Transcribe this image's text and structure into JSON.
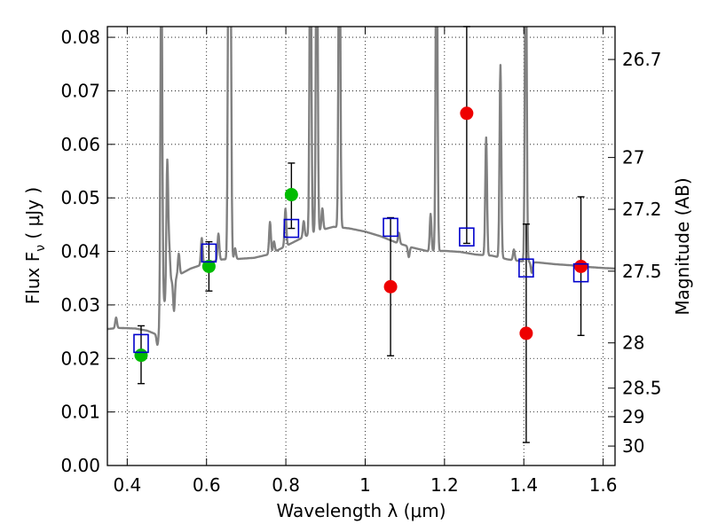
{
  "chart_data": {
    "type": "scatter",
    "xlabel": "Wavelength  λ (μm)",
    "ylabel": "Flux  F",
    "ylabel_sub": "ν",
    "ylabel_unit": " ( μJy )",
    "y2label": "Magnitude (AB)",
    "xlim": [
      0.35,
      1.63
    ],
    "ylim": [
      0.0,
      0.082
    ],
    "grid": true,
    "x_ticks": [
      0.4,
      0.6,
      0.8,
      1.0,
      1.2,
      1.4,
      1.6
    ],
    "x_tick_labels": [
      "0.4",
      "0.6",
      "0.8",
      "1",
      "1.2",
      "1.4",
      "1.6"
    ],
    "y_ticks": [
      0.0,
      0.01,
      0.02,
      0.03,
      0.04,
      0.05,
      0.06,
      0.07,
      0.08
    ],
    "y_tick_labels": [
      "0.00",
      "0.01",
      "0.02",
      "0.03",
      "0.04",
      "0.05",
      "0.06",
      "0.07",
      "0.08"
    ],
    "mag_ticks": [
      {
        "label": "26.7",
        "mag": 26.7
      },
      {
        "label": "27",
        "mag": 27.0
      },
      {
        "label": "27.2",
        "mag": 27.2
      },
      {
        "label": "27.5",
        "mag": 27.5
      },
      {
        "label": "28",
        "mag": 28.0
      },
      {
        "label": "28.5",
        "mag": 28.5
      },
      {
        "label": "29",
        "mag": 29.0
      },
      {
        "label": "30",
        "mag": 30.0
      }
    ],
    "series": [
      {
        "marker": "circle",
        "color": "#00bb00",
        "points": [
          {
            "x": 0.435,
            "y": 0.0206
          },
          {
            "x": 0.606,
            "y": 0.0372
          },
          {
            "x": 0.814,
            "y": 0.0506
          }
        ]
      },
      {
        "marker": "circle",
        "color": "#ee0000",
        "points": [
          {
            "x": 1.064,
            "y": 0.0334
          },
          {
            "x": 1.256,
            "y": 0.0658
          },
          {
            "x": 1.406,
            "y": 0.0247
          },
          {
            "x": 1.544,
            "y": 0.0372
          }
        ]
      },
      {
        "marker": "square-open",
        "color": "#0000cc",
        "points": [
          {
            "x": 0.435,
            "y": 0.0228
          },
          {
            "x": 0.606,
            "y": 0.0397
          },
          {
            "x": 0.814,
            "y": 0.0443
          },
          {
            "x": 1.064,
            "y": 0.0445
          },
          {
            "x": 1.256,
            "y": 0.0427
          },
          {
            "x": 1.406,
            "y": 0.0369
          },
          {
            "x": 1.544,
            "y": 0.036
          }
        ]
      }
    ],
    "error_bars": [
      {
        "x": 0.435,
        "lo": 0.0153,
        "hi": 0.0261
      },
      {
        "x": 0.606,
        "lo": 0.0326,
        "hi": 0.0418
      },
      {
        "x": 0.814,
        "lo": 0.0443,
        "hi": 0.0565
      },
      {
        "x": 1.064,
        "lo": 0.0205,
        "hi": 0.0463
      },
      {
        "x": 1.256,
        "lo": 0.0415,
        "hi": 0.082
      },
      {
        "x": 1.406,
        "lo": 0.0043,
        "hi": 0.0451
      },
      {
        "x": 1.544,
        "lo": 0.0243,
        "hi": 0.0502
      }
    ],
    "template_spectrum": {
      "color": "#808080",
      "continuum": [
        [
          0.35,
          0.0255
        ],
        [
          0.38,
          0.0257
        ],
        [
          0.42,
          0.0256
        ],
        [
          0.45,
          0.0252
        ],
        [
          0.47,
          0.0246
        ],
        [
          0.482,
          0.0245
        ],
        [
          0.488,
          0.0298
        ],
        [
          0.5,
          0.0338
        ],
        [
          0.53,
          0.0356
        ],
        [
          0.56,
          0.0368
        ],
        [
          0.6,
          0.0378
        ],
        [
          0.64,
          0.0385
        ],
        [
          0.68,
          0.0386
        ],
        [
          0.72,
          0.0388
        ],
        [
          0.76,
          0.0395
        ],
        [
          0.8,
          0.041
        ],
        [
          0.84,
          0.0425
        ],
        [
          0.88,
          0.0438
        ],
        [
          0.92,
          0.0446
        ],
        [
          0.96,
          0.0443
        ],
        [
          1.0,
          0.0437
        ],
        [
          1.04,
          0.0428
        ],
        [
          1.08,
          0.0416
        ],
        [
          1.12,
          0.0407
        ],
        [
          1.16,
          0.04
        ],
        [
          1.2,
          0.0401
        ],
        [
          1.24,
          0.0399
        ],
        [
          1.28,
          0.0394
        ],
        [
          1.32,
          0.0392
        ],
        [
          1.36,
          0.0385
        ],
        [
          1.4,
          0.0381
        ],
        [
          1.44,
          0.0379
        ],
        [
          1.48,
          0.0376
        ],
        [
          1.52,
          0.0374
        ],
        [
          1.56,
          0.0371
        ],
        [
          1.6,
          0.0369
        ],
        [
          1.63,
          0.0368
        ]
      ],
      "features": [
        {
          "x": 0.372,
          "dy": 0.002
        },
        {
          "x": 0.476,
          "dy": -0.002
        },
        {
          "x": 0.486,
          "dy": 0.07
        },
        {
          "x": 0.496,
          "dy": -0.002
        },
        {
          "x": 0.501,
          "dy": 0.023
        },
        {
          "x": 0.506,
          "dy": 0.006
        },
        {
          "x": 0.518,
          "dy": -0.006
        },
        {
          "x": 0.53,
          "dy": 0.004
        },
        {
          "x": 0.588,
          "dy": 0.005
        },
        {
          "x": 0.63,
          "dy": 0.005
        },
        {
          "x": 0.656,
          "dy": 0.07
        },
        {
          "x": 0.66,
          "dy": 0.062
        },
        {
          "x": 0.672,
          "dy": 0.002
        },
        {
          "x": 0.76,
          "dy": 0.006
        },
        {
          "x": 0.77,
          "dy": 0.002
        },
        {
          "x": 0.799,
          "dy": 0.007
        },
        {
          "x": 0.845,
          "dy": 0.003
        },
        {
          "x": 0.862,
          "dy": 0.068
        },
        {
          "x": 0.878,
          "dy": 0.07
        },
        {
          "x": 0.892,
          "dy": 0.004
        },
        {
          "x": 0.935,
          "dy": 0.07
        },
        {
          "x": 1.085,
          "dy": 0.002
        },
        {
          "x": 1.11,
          "dy": -0.002
        },
        {
          "x": 1.165,
          "dy": 0.007
        },
        {
          "x": 1.18,
          "dy": 0.07
        },
        {
          "x": 1.305,
          "dy": 0.022
        },
        {
          "x": 1.341,
          "dy": 0.036
        },
        {
          "x": 1.375,
          "dy": 0.002
        },
        {
          "x": 1.405,
          "dy": 0.07
        },
        {
          "x": 1.42,
          "dy": -0.002
        }
      ]
    }
  }
}
